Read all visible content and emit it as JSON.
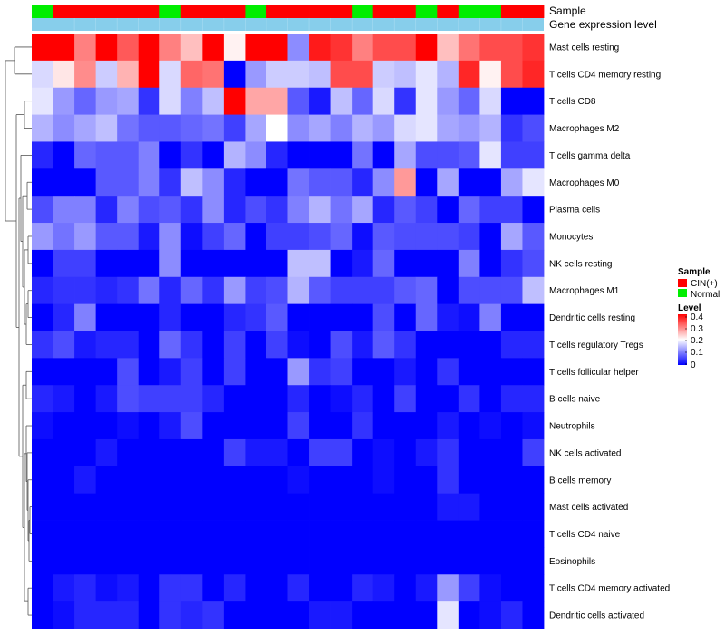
{
  "chart_data": {
    "type": "heatmap",
    "title": "",
    "value_range": [
      0,
      0.4
    ],
    "annotation_tracks": [
      {
        "name": "Sample",
        "values": [
          "Normal",
          "CIN(+)",
          "CIN(+)",
          "CIN(+)",
          "CIN(+)",
          "CIN(+)",
          "Normal",
          "CIN(+)",
          "CIN(+)",
          "CIN(+)",
          "Normal",
          "CIN(+)",
          "CIN(+)",
          "CIN(+)",
          "CIN(+)",
          "Normal",
          "CIN(+)",
          "CIN(+)",
          "Normal",
          "CIN(+)",
          "Normal",
          "Normal",
          "CIN(+)",
          "CIN(+)"
        ]
      },
      {
        "name": "Gene expression level",
        "values": []
      }
    ],
    "rows": [
      "Mast cells resting",
      "T cells CD4 memory resting",
      "T cells CD8",
      "Macrophages M2",
      "T cells gamma delta",
      "Macrophages M0",
      "Plasma cells",
      "Monocytes",
      "NK cells resting",
      "Macrophages M1",
      "Dendritic cells resting",
      "T cells regulatory  Tregs",
      "T cells follicular helper",
      "B cells naive",
      "Neutrophils",
      "NK cells activated",
      "B cells memory",
      "Mast cells activated",
      "T cells CD4 naive",
      "Eosinophils",
      "T cells CD4 memory activated",
      "Dendritic cells activated"
    ],
    "values": [
      [
        0.4,
        0.4,
        0.3,
        0.4,
        0.33,
        0.4,
        0.3,
        0.25,
        0.4,
        0.21,
        0.4,
        0.4,
        0.11,
        0.38,
        0.36,
        0.3,
        0.34,
        0.34,
        0.4,
        0.25,
        0.31,
        0.34,
        0.34,
        0.36
      ],
      [
        0.17,
        0.22,
        0.29,
        0.16,
        0.26,
        0.4,
        0.17,
        0.32,
        0.31,
        0.0,
        0.12,
        0.16,
        0.16,
        0.15,
        0.34,
        0.34,
        0.16,
        0.15,
        0.18,
        0.14,
        0.37,
        0.21,
        0.34,
        0.37
      ],
      [
        0.18,
        0.12,
        0.08,
        0.12,
        0.13,
        0.04,
        0.17,
        0.1,
        0.15,
        0.4,
        0.27,
        0.27,
        0.07,
        0.02,
        0.15,
        0.08,
        0.17,
        0.04,
        0.18,
        0.12,
        0.08,
        0.17,
        0.0,
        0.0
      ],
      [
        0.14,
        0.11,
        0.13,
        0.15,
        0.09,
        0.07,
        0.07,
        0.08,
        0.09,
        0.05,
        0.13,
        0.2,
        0.11,
        0.13,
        0.1,
        0.14,
        0.12,
        0.17,
        0.18,
        0.13,
        0.12,
        0.14,
        0.04,
        0.06
      ],
      [
        0.03,
        0.0,
        0.08,
        0.07,
        0.07,
        0.1,
        0.0,
        0.04,
        0.0,
        0.14,
        0.11,
        0.03,
        0.0,
        0.0,
        0.0,
        0.09,
        0.0,
        0.13,
        0.06,
        0.06,
        0.07,
        0.18,
        0.05,
        0.05
      ],
      [
        0.0,
        0.0,
        0.0,
        0.07,
        0.07,
        0.1,
        0.04,
        0.15,
        0.11,
        0.03,
        0.0,
        0.0,
        0.09,
        0.07,
        0.07,
        0.03,
        0.11,
        0.28,
        0.0,
        0.13,
        0.0,
        0.0,
        0.13,
        0.18
      ],
      [
        0.06,
        0.1,
        0.1,
        0.03,
        0.1,
        0.06,
        0.07,
        0.04,
        0.11,
        0.03,
        0.06,
        0.04,
        0.1,
        0.14,
        0.09,
        0.13,
        0.03,
        0.07,
        0.05,
        0.0,
        0.08,
        0.05,
        0.05,
        0.0
      ],
      [
        0.12,
        0.09,
        0.12,
        0.07,
        0.07,
        0.02,
        0.11,
        0.01,
        0.05,
        0.08,
        0.0,
        0.05,
        0.05,
        0.06,
        0.08,
        0.01,
        0.07,
        0.06,
        0.06,
        0.06,
        0.05,
        0.0,
        0.13,
        0.07
      ],
      [
        0.0,
        0.05,
        0.05,
        0.0,
        0.0,
        0.0,
        0.11,
        0.0,
        0.0,
        0.0,
        0.0,
        0.0,
        0.15,
        0.15,
        0.0,
        0.02,
        0.08,
        0.0,
        0.0,
        0.0,
        0.1,
        0.0,
        0.04,
        0.06
      ],
      [
        0.03,
        0.04,
        0.04,
        0.03,
        0.04,
        0.09,
        0.03,
        0.08,
        0.04,
        0.12,
        0.05,
        0.06,
        0.14,
        0.07,
        0.05,
        0.05,
        0.05,
        0.07,
        0.08,
        0.0,
        0.06,
        0.06,
        0.06,
        0.15
      ],
      [
        0.0,
        0.03,
        0.1,
        0.0,
        0.0,
        0.0,
        0.03,
        0.0,
        0.0,
        0.03,
        0.04,
        0.07,
        0.0,
        0.0,
        0.0,
        0.0,
        0.06,
        0.0,
        0.08,
        0.02,
        0.01,
        0.1,
        0.0,
        0.0
      ],
      [
        0.04,
        0.06,
        0.02,
        0.03,
        0.03,
        0.0,
        0.08,
        0.04,
        0.0,
        0.05,
        0.0,
        0.05,
        0.01,
        0.0,
        0.06,
        0.02,
        0.07,
        0.04,
        0.0,
        0.0,
        0.0,
        0.0,
        0.03,
        0.03
      ],
      [
        0.0,
        0.0,
        0.0,
        0.0,
        0.06,
        0.0,
        0.02,
        0.05,
        0.0,
        0.05,
        0.0,
        0.0,
        0.12,
        0.04,
        0.05,
        0.0,
        0.0,
        0.02,
        0.0,
        0.04,
        0.0,
        0.0,
        0.0,
        0.0
      ],
      [
        0.03,
        0.02,
        0.0,
        0.02,
        0.06,
        0.05,
        0.05,
        0.05,
        0.03,
        0.0,
        0.0,
        0.0,
        0.03,
        0.0,
        0.01,
        0.03,
        0.0,
        0.05,
        0.0,
        0.0,
        0.04,
        0.0,
        0.03,
        0.03
      ],
      [
        0.01,
        0.0,
        0.0,
        0.0,
        0.01,
        0.0,
        0.02,
        0.06,
        0.0,
        0.0,
        0.0,
        0.0,
        0.05,
        0.0,
        0.0,
        0.04,
        0.0,
        0.0,
        0.0,
        0.02,
        0.0,
        0.01,
        0.0,
        0.01
      ],
      [
        0.0,
        0.0,
        0.0,
        0.02,
        0.0,
        0.0,
        0.0,
        0.0,
        0.0,
        0.05,
        0.02,
        0.02,
        0.0,
        0.05,
        0.05,
        0.0,
        0.01,
        0.0,
        0.02,
        0.04,
        0.0,
        0.0,
        0.0,
        0.05
      ],
      [
        0.0,
        0.0,
        0.02,
        0.0,
        0.0,
        0.0,
        0.0,
        0.0,
        0.0,
        0.0,
        0.0,
        0.0,
        0.01,
        0.0,
        0.0,
        0.0,
        0.01,
        0.0,
        0.0,
        0.04,
        0.0,
        0.0,
        0.0,
        0.0
      ],
      [
        0.0,
        0.0,
        0.0,
        0.0,
        0.0,
        0.0,
        0.0,
        0.0,
        0.0,
        0.0,
        0.0,
        0.0,
        0.0,
        0.0,
        0.0,
        0.0,
        0.0,
        0.0,
        0.0,
        0.02,
        0.02,
        0.0,
        0.0,
        0.0
      ],
      [
        0.0,
        0.0,
        0.0,
        0.0,
        0.0,
        0.0,
        0.0,
        0.0,
        0.0,
        0.0,
        0.0,
        0.0,
        0.0,
        0.0,
        0.0,
        0.0,
        0.0,
        0.0,
        0.0,
        0.0,
        0.0,
        0.0,
        0.0,
        0.0
      ],
      [
        0.0,
        0.0,
        0.0,
        0.0,
        0.0,
        0.0,
        0.0,
        0.0,
        0.0,
        0.0,
        0.0,
        0.0,
        0.0,
        0.0,
        0.0,
        0.0,
        0.0,
        0.0,
        0.0,
        0.0,
        0.0,
        0.0,
        0.0,
        0.0
      ],
      [
        0.0,
        0.02,
        0.03,
        0.01,
        0.02,
        0.0,
        0.04,
        0.04,
        0.0,
        0.03,
        0.0,
        0.0,
        0.03,
        0.0,
        0.0,
        0.03,
        0.02,
        0.0,
        0.02,
        0.12,
        0.05,
        0.01,
        0.0,
        0.0
      ],
      [
        0.0,
        0.01,
        0.03,
        0.03,
        0.03,
        0.0,
        0.04,
        0.03,
        0.04,
        0.0,
        0.0,
        0.0,
        0.0,
        0.02,
        0.02,
        0.0,
        0.0,
        0.0,
        0.0,
        0.18,
        0.0,
        0.01,
        0.03,
        0.0
      ]
    ],
    "legends": [
      {
        "title": "Sample",
        "items": [
          {
            "label": "CIN(+)",
            "color": "#ff0000"
          },
          {
            "label": "Normal",
            "color": "#00ee00"
          }
        ]
      },
      {
        "title": "Level",
        "type": "continuous",
        "ticks": [
          "0.4",
          "0.3",
          "0.2",
          "0.1",
          "0"
        ]
      }
    ],
    "colors": {
      "low": "#0000ff",
      "mid": "#ffffff",
      "high": "#ff0000",
      "expression_track": "#87ceeb",
      "dendrogram": "#555555"
    }
  }
}
